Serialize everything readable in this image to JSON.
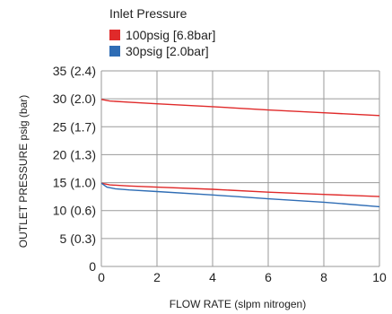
{
  "chart_data": {
    "type": "line",
    "title": "",
    "xlabel": "FLOW RATE (slpm nitrogen)",
    "ylabel": "OUTLET PRESSURE psig (bar)",
    "xlim": [
      0,
      10
    ],
    "ylim": [
      0,
      35
    ],
    "x_ticks": [
      "0",
      "2",
      "4",
      "6",
      "8",
      "10"
    ],
    "y_ticks": [
      "0",
      "5 (0.3)",
      "10 (0.6)",
      "15 (1.0)",
      "20 (1.3)",
      "25 (1.7)",
      "30 (2.0)",
      "35 (2.4)"
    ],
    "grid": true,
    "legend": {
      "title": "Inlet Pressure",
      "placement": "top"
    },
    "series": [
      {
        "name": "100psig [6.8bar]",
        "color": "#e02a2a",
        "x": [
          0,
          0.3,
          1,
          2,
          4,
          6,
          8,
          10
        ],
        "y": [
          29.9,
          29.6,
          29.4,
          29.1,
          28.6,
          28.0,
          27.5,
          27.0
        ]
      },
      {
        "name": "100psig [6.8bar]",
        "color": "#e02a2a",
        "x": [
          0,
          0.3,
          1,
          2,
          4,
          6,
          8,
          10
        ],
        "y": [
          14.9,
          14.6,
          14.4,
          14.2,
          13.8,
          13.3,
          12.9,
          12.5
        ]
      },
      {
        "name": "30psig [2.0bar]",
        "color": "#2f6db5",
        "x": [
          0,
          0.2,
          0.5,
          1,
          2,
          4,
          6,
          8,
          10
        ],
        "y": [
          14.9,
          14.2,
          13.9,
          13.7,
          13.4,
          12.8,
          12.1,
          11.5,
          10.7
        ]
      }
    ]
  }
}
